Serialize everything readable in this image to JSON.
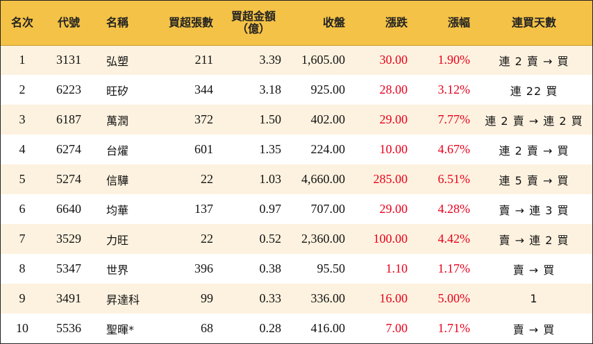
{
  "headers": {
    "rank": "名次",
    "code": "代號",
    "name": "名稱",
    "net_lots": "買超張數",
    "net_amount_line1": "買超金額",
    "net_amount_line2": "（億）",
    "close": "收盤",
    "change": "漲跌",
    "pct": "漲幅",
    "streak": "連買天數"
  },
  "colors": {
    "header_bg": "#f4c246",
    "odd_row_bg": "#fdf2df",
    "even_row_bg": "#ffffff",
    "positive": "#e8001c"
  },
  "rows": [
    {
      "rank": "1",
      "code": "3131",
      "name": "弘塑",
      "net_lots": "211",
      "net_amount": "3.39",
      "close": "1,605.00",
      "change": "30.00",
      "pct": "1.90%",
      "streak": "連 2 賣 → 買"
    },
    {
      "rank": "2",
      "code": "6223",
      "name": "旺矽",
      "net_lots": "344",
      "net_amount": "3.18",
      "close": "925.00",
      "change": "28.00",
      "pct": "3.12%",
      "streak": "連 22 買"
    },
    {
      "rank": "3",
      "code": "6187",
      "name": "萬潤",
      "net_lots": "372",
      "net_amount": "1.50",
      "close": "402.00",
      "change": "29.00",
      "pct": "7.77%",
      "streak": "連 2 賣 → 連 2 買"
    },
    {
      "rank": "4",
      "code": "6274",
      "name": "台燿",
      "net_lots": "601",
      "net_amount": "1.35",
      "close": "224.00",
      "change": "10.00",
      "pct": "4.67%",
      "streak": "連 2 賣 → 買"
    },
    {
      "rank": "5",
      "code": "5274",
      "name": "信驊",
      "net_lots": "22",
      "net_amount": "1.03",
      "close": "4,660.00",
      "change": "285.00",
      "pct": "6.51%",
      "streak": "連 5 賣 → 買"
    },
    {
      "rank": "6",
      "code": "6640",
      "name": "均華",
      "net_lots": "137",
      "net_amount": "0.97",
      "close": "707.00",
      "change": "29.00",
      "pct": "4.28%",
      "streak": "賣 → 連 3 買"
    },
    {
      "rank": "7",
      "code": "3529",
      "name": "力旺",
      "net_lots": "22",
      "net_amount": "0.52",
      "close": "2,360.00",
      "change": "100.00",
      "pct": "4.42%",
      "streak": "賣 → 連 2 買"
    },
    {
      "rank": "8",
      "code": "5347",
      "name": "世界",
      "net_lots": "396",
      "net_amount": "0.38",
      "close": "95.50",
      "change": "1.10",
      "pct": "1.17%",
      "streak": "賣 → 買"
    },
    {
      "rank": "9",
      "code": "3491",
      "name": "昇達科",
      "net_lots": "99",
      "net_amount": "0.33",
      "close": "336.00",
      "change": "16.00",
      "pct": "5.00%",
      "streak": "1"
    },
    {
      "rank": "10",
      "code": "5536",
      "name": "聖暉*",
      "net_lots": "68",
      "net_amount": "0.28",
      "close": "416.00",
      "change": "7.00",
      "pct": "1.71%",
      "streak": "賣 → 買"
    }
  ]
}
